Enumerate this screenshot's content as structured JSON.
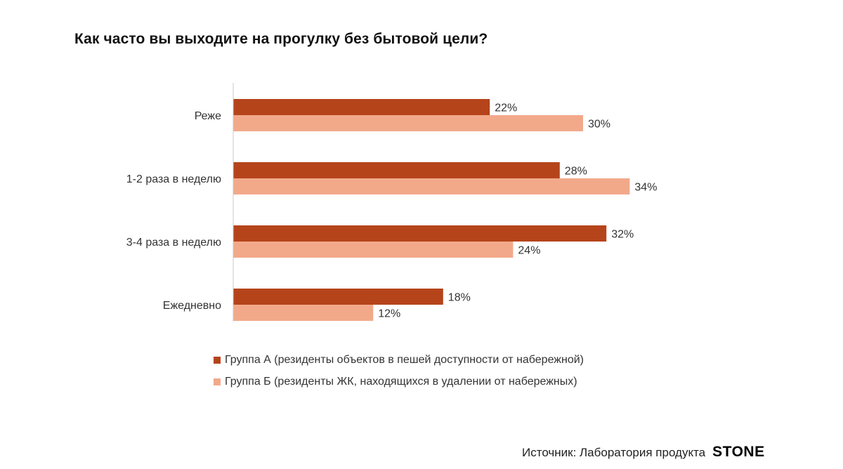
{
  "title": "Как часто вы выходите на прогулку без бытовой цели?",
  "chart_data": {
    "type": "bar",
    "orientation": "horizontal",
    "categories": [
      "Реже",
      "1-2 раза в неделю",
      "3-4 раза в неделю",
      "Ежедневно"
    ],
    "series": [
      {
        "name": "Группа А (резиденты объектов в пешей доступности от набережной)",
        "values": [
          22,
          28,
          32,
          18
        ],
        "labels": [
          "22%",
          "28%",
          "32%",
          "18%"
        ],
        "color": "#b5441b"
      },
      {
        "name": "Группа Б (резиденты ЖК, находящихся в удалении от набережных)",
        "values": [
          30,
          34,
          24,
          12
        ],
        "labels": [
          "30%",
          "34%",
          "24%",
          "12%"
        ],
        "color": "#f2a98a"
      }
    ],
    "xlim": [
      0,
      35
    ],
    "grid": false,
    "legend": "bottom",
    "unit": "%"
  },
  "source": {
    "text": "Источник: Лаборатория продукта",
    "logo_text": "STONE"
  }
}
